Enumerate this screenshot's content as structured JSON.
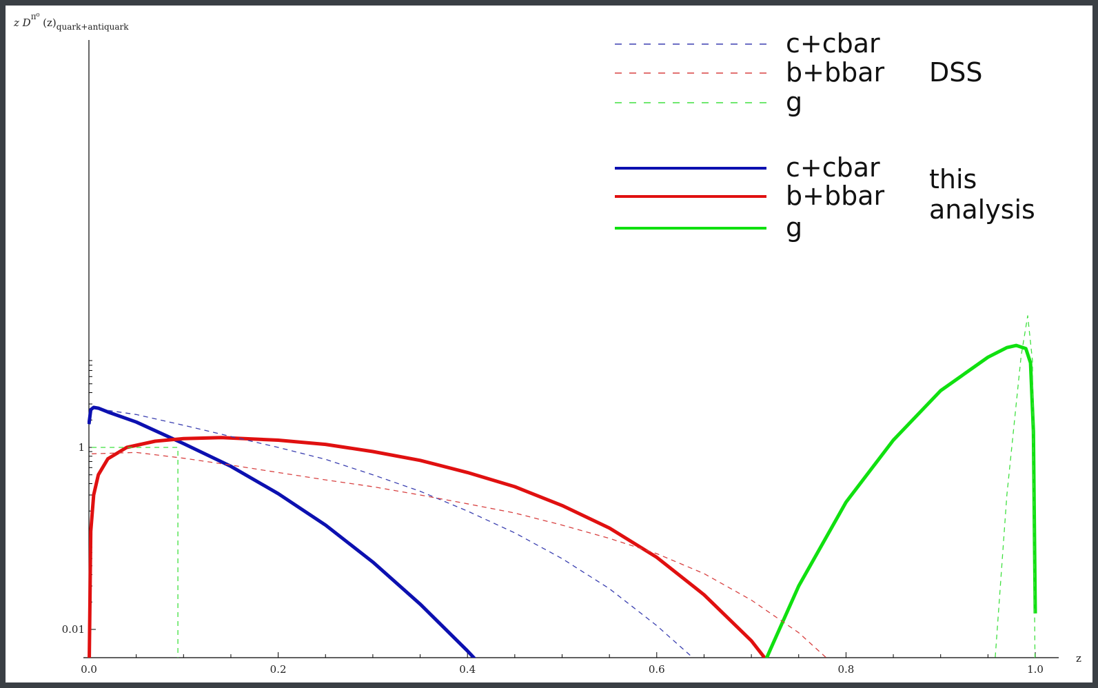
{
  "chart_data": {
    "type": "line",
    "ylabel": {
      "main": "z  D",
      "superscript": "π⁰",
      "argument": "(z)",
      "subscript": "quark+antiquark"
    },
    "xlabel": "z",
    "xlim": [
      0.0,
      1.0
    ],
    "ylim": [
      0.002,
      10000
    ],
    "yscale": "log",
    "x_ticks": [
      "0.0",
      "0.2",
      "0.4",
      "0.6",
      "0.8",
      "1.0"
    ],
    "y_ticks": [
      {
        "value": 1,
        "label": "1"
      },
      {
        "value": 0.01,
        "label": "0.01"
      }
    ],
    "grid": false,
    "legend_groups": [
      {
        "label": "DSS",
        "style": "dashed",
        "entries": [
          {
            "name": "c+cbar",
            "color": "#3a3fb0"
          },
          {
            "name": "b+bbar",
            "color": "#d84040"
          },
          {
            "name": "g",
            "color": "#3fe03f"
          }
        ]
      },
      {
        "label_lines": [
          "this",
          "analysis"
        ],
        "style": "solid",
        "entries": [
          {
            "name": "c+cbar",
            "color": "#0c10b0"
          },
          {
            "name": "b+bbar",
            "color": "#e01010"
          },
          {
            "name": "g",
            "color": "#10e010"
          }
        ]
      }
    ],
    "series": [
      {
        "group": "this analysis",
        "style": "solid",
        "color": "#0c10b0",
        "legend_index": 0,
        "x": [
          0.0,
          0.002,
          0.005,
          0.01,
          0.02,
          0.05,
          0.1,
          0.15,
          0.2,
          0.25,
          0.3,
          0.35,
          0.4,
          0.44
        ],
        "y": [
          1.8,
          2.6,
          2.75,
          2.7,
          2.45,
          1.9,
          1.1,
          0.62,
          0.31,
          0.14,
          0.055,
          0.019,
          0.0058,
          0.0021
        ]
      },
      {
        "group": "this analysis",
        "style": "solid",
        "color": "#e01010",
        "legend_index": 1,
        "x": [
          0.0,
          0.002,
          0.005,
          0.01,
          0.02,
          0.04,
          0.07,
          0.1,
          0.14,
          0.2,
          0.25,
          0.3,
          0.35,
          0.4,
          0.45,
          0.5,
          0.55,
          0.6,
          0.65,
          0.7,
          0.74
        ],
        "y": [
          0.0022,
          0.12,
          0.3,
          0.5,
          0.75,
          1.0,
          1.17,
          1.25,
          1.28,
          1.2,
          1.08,
          0.9,
          0.72,
          0.53,
          0.37,
          0.23,
          0.13,
          0.062,
          0.024,
          0.0075,
          0.0022
        ]
      },
      {
        "group": "this analysis",
        "style": "solid",
        "color": "#10e010",
        "legend_index": 2,
        "x": [
          0.7,
          0.72,
          0.75,
          0.8,
          0.85,
          0.9,
          0.95,
          0.97,
          0.98,
          0.99,
          0.995,
          0.998,
          1.0
        ],
        "y": [
          0.002,
          0.006,
          0.03,
          0.25,
          1.2,
          4.2,
          9.8,
          12.5,
          13.2,
          12.2,
          8.5,
          1.5,
          0.015
        ]
      },
      {
        "group": "DSS",
        "style": "dashed",
        "color": "#3a3fb0",
        "legend_index": 0,
        "x": [
          0.02,
          0.05,
          0.1,
          0.15,
          0.2,
          0.25,
          0.3,
          0.35,
          0.4,
          0.45,
          0.5,
          0.55,
          0.6,
          0.65,
          0.68
        ],
        "y": [
          2.55,
          2.3,
          1.75,
          1.32,
          1.0,
          0.74,
          0.5,
          0.33,
          0.2,
          0.115,
          0.06,
          0.028,
          0.011,
          0.0038,
          0.0021
        ]
      },
      {
        "group": "DSS",
        "style": "dashed",
        "color": "#d84040",
        "legend_index": 1,
        "x": [
          0.003,
          0.05,
          0.1,
          0.15,
          0.2,
          0.25,
          0.3,
          0.35,
          0.4,
          0.45,
          0.5,
          0.55,
          0.6,
          0.65,
          0.7,
          0.75,
          0.8,
          0.82
        ],
        "y": [
          0.85,
          0.88,
          0.76,
          0.64,
          0.53,
          0.44,
          0.37,
          0.3,
          0.24,
          0.19,
          0.14,
          0.1,
          0.068,
          0.041,
          0.021,
          0.0092,
          0.0031,
          0.0021
        ]
      },
      {
        "group": "DSS",
        "style": "dashed",
        "color": "#3fe03f",
        "legend_index": 2,
        "x": [
          0.003,
          0.094,
          0.094,
          0.094
        ],
        "y": [
          1.0,
          1.0,
          0.6,
          0.002
        ]
      },
      {
        "group": "DSS",
        "style": "dashed",
        "color": "#3fe03f",
        "legend_index": 2,
        "x": [
          0.955,
          0.97,
          0.985,
          0.992,
          0.997,
          1.0
        ],
        "y": [
          0.002,
          0.3,
          10,
          28,
          9,
          0.002
        ]
      }
    ]
  }
}
